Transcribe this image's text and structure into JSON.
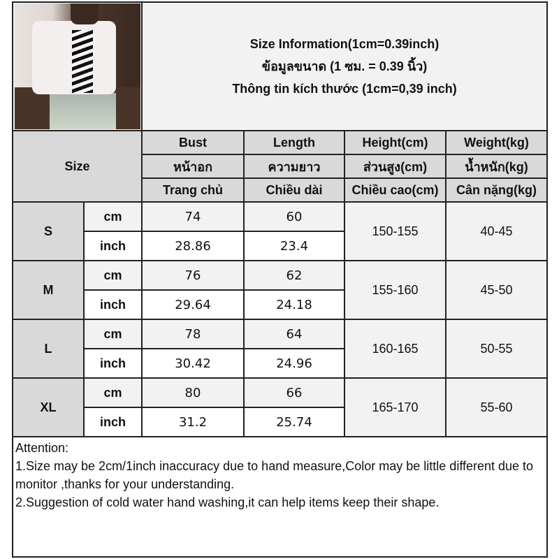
{
  "title": {
    "line1": "Size Information(1cm=0.39inch)",
    "line2": "ข้อมูลขนาด (1 ซม. = 0.39 นิ้ว)",
    "line3": "Thông tin kích thước (1cm=0,39 inch)"
  },
  "header": {
    "size_label": "Size",
    "columns": [
      {
        "en": "Bust",
        "th": "หน้าอก",
        "vi": "Trang chủ"
      },
      {
        "en": "Length",
        "th": "ความยาว",
        "vi": "Chiều dài"
      },
      {
        "en": "Height(cm)",
        "th": "ส่วนสูง(cm)",
        "vi": "Chiều cao(cm)"
      },
      {
        "en": "Weight(kg)",
        "th": "น้ำหนัก(kg)",
        "vi": "Cân nặng(kg)"
      }
    ]
  },
  "units": {
    "cm": "cm",
    "inch": "inch"
  },
  "rows": [
    {
      "size": "S",
      "cm": {
        "bust": "74",
        "length": "60"
      },
      "inch": {
        "bust": "28.86",
        "length": "23.4"
      },
      "height": "150-155",
      "weight": "40-45"
    },
    {
      "size": "M",
      "cm": {
        "bust": "76",
        "length": "62"
      },
      "inch": {
        "bust": "29.64",
        "length": "24.18"
      },
      "height": "155-160",
      "weight": "45-50"
    },
    {
      "size": "L",
      "cm": {
        "bust": "78",
        "length": "64"
      },
      "inch": {
        "bust": "30.42",
        "length": "24.96"
      },
      "height": "160-165",
      "weight": "50-55"
    },
    {
      "size": "XL",
      "cm": {
        "bust": "80",
        "length": "66"
      },
      "inch": {
        "bust": "31.2",
        "length": "25.74"
      },
      "height": "165-170",
      "weight": "55-60"
    }
  ],
  "attention": {
    "heading": "Attention:",
    "note1": "1.Size may be 2cm/1inch inaccuracy due to hand measure,Color may be little different due to monitor ,thanks for your understanding.",
    "note2": "2.Suggestion of cold water hand washing,it can help items keep their shape."
  },
  "colors": {
    "header_bg": "#d9d9d9",
    "light_bg": "#f2f2f2",
    "border": "#222222"
  }
}
